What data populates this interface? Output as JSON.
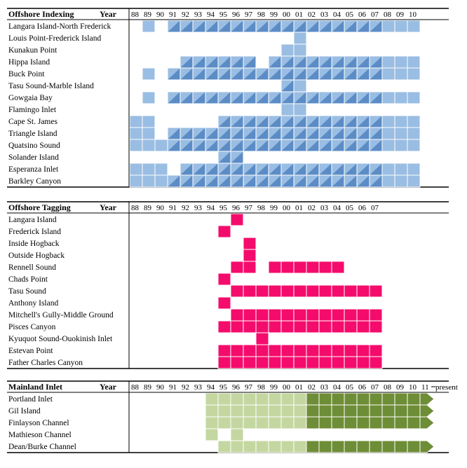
{
  "colors": {
    "indexing_light": "#9abde3",
    "indexing_dark": "#5b8cc6",
    "tagging": "#f40c6c",
    "mainland_light": "#c4d7a0",
    "mainland_dark": "#6e8d37"
  },
  "chart_data": [
    {
      "type": "heatmap",
      "title": "Offshore Indexing",
      "year_label": "Year",
      "years": [
        "88",
        "89",
        "90",
        "91",
        "92",
        "93",
        "94",
        "95",
        "96",
        "97",
        "98",
        "99",
        "00",
        "01",
        "02",
        "03",
        "04",
        "05",
        "06",
        "07",
        "08",
        "09",
        "10"
      ],
      "grid": "off",
      "legend": "none",
      "value_key": {
        "1": "light cell",
        "2": "split cell (light/dark diagonal)"
      },
      "rows": [
        {
          "name": "Langara Island-North Frederick",
          "values": [
            0,
            1,
            0,
            2,
            2,
            2,
            2,
            2,
            2,
            2,
            2,
            2,
            2,
            2,
            2,
            2,
            2,
            2,
            2,
            2,
            1,
            1,
            1
          ]
        },
        {
          "name": "Louis Point-Frederick Island",
          "values": [
            0,
            0,
            0,
            0,
            0,
            0,
            0,
            0,
            0,
            0,
            0,
            0,
            0,
            1,
            0,
            0,
            0,
            0,
            0,
            0,
            0,
            0,
            0
          ]
        },
        {
          "name": "Kunakun Point",
          "values": [
            0,
            0,
            0,
            0,
            0,
            0,
            0,
            0,
            0,
            0,
            0,
            0,
            1,
            1,
            0,
            0,
            0,
            0,
            0,
            0,
            0,
            0,
            0
          ]
        },
        {
          "name": "Hippa Island",
          "values": [
            0,
            0,
            0,
            0,
            2,
            2,
            2,
            2,
            2,
            2,
            0,
            2,
            2,
            2,
            2,
            2,
            2,
            2,
            2,
            2,
            1,
            1,
            1
          ]
        },
        {
          "name": "Buck Point",
          "values": [
            0,
            1,
            0,
            2,
            2,
            2,
            2,
            2,
            2,
            2,
            2,
            2,
            2,
            2,
            2,
            2,
            2,
            2,
            2,
            2,
            1,
            1,
            1
          ]
        },
        {
          "name": "Tasu Sound-Marble Island",
          "values": [
            0,
            0,
            0,
            0,
            0,
            0,
            0,
            0,
            0,
            0,
            0,
            0,
            2,
            1,
            0,
            0,
            0,
            0,
            0,
            0,
            0,
            0,
            0
          ]
        },
        {
          "name": "Gowgaia Bay",
          "values": [
            0,
            1,
            0,
            2,
            2,
            2,
            2,
            2,
            2,
            2,
            2,
            2,
            2,
            2,
            2,
            2,
            2,
            2,
            2,
            2,
            1,
            1,
            1
          ]
        },
        {
          "name": "Flamingo Inlet",
          "values": [
            0,
            0,
            0,
            0,
            0,
            0,
            0,
            0,
            0,
            0,
            0,
            0,
            1,
            1,
            0,
            0,
            0,
            0,
            0,
            0,
            0,
            0,
            0
          ]
        },
        {
          "name": "Cape St. James",
          "values": [
            1,
            1,
            0,
            0,
            0,
            0,
            0,
            2,
            2,
            2,
            2,
            2,
            2,
            2,
            2,
            2,
            2,
            2,
            2,
            2,
            1,
            1,
            1
          ]
        },
        {
          "name": "Triangle Island",
          "values": [
            1,
            1,
            0,
            2,
            2,
            2,
            2,
            2,
            2,
            2,
            2,
            2,
            2,
            2,
            2,
            2,
            2,
            2,
            2,
            2,
            1,
            1,
            1
          ]
        },
        {
          "name": "Quatsino Sound",
          "values": [
            1,
            1,
            1,
            2,
            2,
            2,
            2,
            2,
            2,
            2,
            2,
            2,
            2,
            2,
            2,
            2,
            2,
            2,
            2,
            2,
            1,
            1,
            1
          ]
        },
        {
          "name": "Solander Island",
          "values": [
            0,
            0,
            0,
            0,
            0,
            0,
            0,
            2,
            2,
            0,
            0,
            0,
            0,
            0,
            0,
            0,
            0,
            0,
            0,
            0,
            0,
            0,
            0
          ]
        },
        {
          "name": "Esperanza Inlet",
          "values": [
            1,
            1,
            1,
            0,
            2,
            2,
            2,
            2,
            2,
            2,
            2,
            2,
            2,
            2,
            2,
            2,
            2,
            2,
            2,
            2,
            1,
            1,
            1
          ]
        },
        {
          "name": "Barkley Canyon",
          "values": [
            1,
            1,
            1,
            2,
            2,
            2,
            2,
            2,
            2,
            2,
            2,
            2,
            2,
            2,
            2,
            2,
            2,
            2,
            2,
            2,
            1,
            1,
            1
          ]
        }
      ]
    },
    {
      "type": "heatmap",
      "title": "Offshore Tagging",
      "year_label": "Year",
      "years": [
        "88",
        "89",
        "90",
        "91",
        "92",
        "93",
        "94",
        "95",
        "96",
        "97",
        "98",
        "99",
        "00",
        "01",
        "02",
        "03",
        "04",
        "05",
        "06",
        "07"
      ],
      "grid": "off",
      "legend": "none",
      "value_key": {
        "1": "filled cell"
      },
      "rows": [
        {
          "name": "Langara Island",
          "values": [
            0,
            0,
            0,
            0,
            0,
            0,
            0,
            0,
            1,
            0,
            0,
            0,
            0,
            0,
            0,
            0,
            0,
            0,
            0,
            0
          ]
        },
        {
          "name": "Frederick Island",
          "values": [
            0,
            0,
            0,
            0,
            0,
            0,
            0,
            1,
            0,
            0,
            0,
            0,
            0,
            0,
            0,
            0,
            0,
            0,
            0,
            0
          ]
        },
        {
          "name": "Inside Hogback",
          "values": [
            0,
            0,
            0,
            0,
            0,
            0,
            0,
            0,
            0,
            1,
            0,
            0,
            0,
            0,
            0,
            0,
            0,
            0,
            0,
            0
          ]
        },
        {
          "name": "Outside Hogback",
          "values": [
            0,
            0,
            0,
            0,
            0,
            0,
            0,
            0,
            0,
            1,
            0,
            0,
            0,
            0,
            0,
            0,
            0,
            0,
            0,
            0
          ]
        },
        {
          "name": "Rennell Sound",
          "values": [
            0,
            0,
            0,
            0,
            0,
            0,
            0,
            0,
            1,
            1,
            0,
            1,
            1,
            1,
            1,
            1,
            1,
            0,
            0,
            0
          ]
        },
        {
          "name": "Chads Point",
          "values": [
            0,
            0,
            0,
            0,
            0,
            0,
            0,
            1,
            0,
            0,
            0,
            0,
            0,
            0,
            0,
            0,
            0,
            0,
            0,
            0
          ]
        },
        {
          "name": "Tasu Sound",
          "values": [
            0,
            0,
            0,
            0,
            0,
            0,
            0,
            0,
            1,
            1,
            1,
            1,
            1,
            1,
            1,
            1,
            1,
            1,
            1,
            1
          ]
        },
        {
          "name": "Anthony Island",
          "values": [
            0,
            0,
            0,
            0,
            0,
            0,
            0,
            1,
            0,
            0,
            0,
            0,
            0,
            0,
            0,
            0,
            0,
            0,
            0,
            0
          ]
        },
        {
          "name": "Mitchell's Gully-Middle Ground",
          "values": [
            0,
            0,
            0,
            0,
            0,
            0,
            0,
            0,
            1,
            1,
            1,
            1,
            1,
            1,
            1,
            1,
            1,
            1,
            1,
            1
          ]
        },
        {
          "name": "Pisces Canyon",
          "values": [
            0,
            0,
            0,
            0,
            0,
            0,
            0,
            1,
            1,
            1,
            1,
            1,
            1,
            1,
            1,
            1,
            1,
            1,
            1,
            1
          ]
        },
        {
          "name": "Kyuquot Sound-Ouokinish Inlet",
          "values": [
            0,
            0,
            0,
            0,
            0,
            0,
            0,
            0,
            0,
            0,
            1,
            0,
            0,
            0,
            0,
            0,
            0,
            0,
            0,
            0
          ]
        },
        {
          "name": "Estevan Point",
          "values": [
            0,
            0,
            0,
            0,
            0,
            0,
            0,
            1,
            1,
            1,
            1,
            1,
            1,
            1,
            1,
            1,
            1,
            1,
            1,
            1
          ]
        },
        {
          "name": "Father Charles Canyon",
          "values": [
            0,
            0,
            0,
            0,
            0,
            0,
            0,
            1,
            1,
            1,
            1,
            1,
            1,
            1,
            1,
            1,
            1,
            1,
            1,
            1
          ]
        }
      ]
    },
    {
      "type": "heatmap",
      "title": "Mainland Inlet",
      "year_label": "Year",
      "years": [
        "88",
        "89",
        "90",
        "91",
        "92",
        "93",
        "94",
        "95",
        "96",
        "97",
        "98",
        "99",
        "00",
        "01",
        "02",
        "03",
        "04",
        "05",
        "06",
        "07",
        "08",
        "09",
        "10",
        "11"
      ],
      "present_label": "present",
      "grid": "off",
      "legend": "none",
      "value_key": {
        "1": "light cell",
        "2": "dark cell",
        "3": "dark arrow (continues to present)"
      },
      "rows": [
        {
          "name": "Portland Inlet",
          "values": [
            0,
            0,
            0,
            0,
            0,
            0,
            1,
            1,
            1,
            1,
            1,
            1,
            1,
            1,
            2,
            2,
            2,
            2,
            2,
            2,
            2,
            2,
            2,
            3
          ]
        },
        {
          "name": "Gil Island",
          "values": [
            0,
            0,
            0,
            0,
            0,
            0,
            1,
            1,
            1,
            1,
            1,
            1,
            1,
            1,
            2,
            2,
            2,
            2,
            2,
            2,
            2,
            2,
            2,
            3
          ]
        },
        {
          "name": "Finlayson Channel",
          "values": [
            0,
            0,
            0,
            0,
            0,
            0,
            1,
            1,
            1,
            1,
            1,
            1,
            1,
            1,
            2,
            2,
            2,
            2,
            2,
            2,
            2,
            2,
            2,
            3
          ]
        },
        {
          "name": "Mathieson Channel",
          "values": [
            0,
            0,
            0,
            0,
            0,
            0,
            1,
            0,
            1,
            0,
            0,
            0,
            0,
            0,
            0,
            0,
            0,
            0,
            0,
            0,
            0,
            0,
            0,
            0
          ]
        },
        {
          "name": "Dean/Burke Channel",
          "values": [
            0,
            0,
            0,
            0,
            0,
            0,
            0,
            1,
            1,
            1,
            1,
            1,
            1,
            1,
            2,
            2,
            2,
            2,
            2,
            2,
            2,
            2,
            2,
            3
          ]
        }
      ]
    }
  ]
}
